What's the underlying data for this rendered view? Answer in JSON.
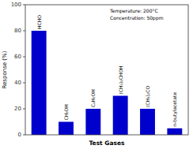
{
  "chart_data": {
    "type": "bar",
    "categories": [
      "HCHO",
      "CH₃OH",
      "C₂H₅OH",
      "(CH₃)₂CHOH",
      "(CH₃)₂CO",
      "n-butylacetate"
    ],
    "values": [
      80,
      10,
      20,
      30,
      20,
      5
    ],
    "color": "#0000cc",
    "xlabel": "Test Gases",
    "ylabel": "Response (%)",
    "annotation": "Temperature: 200°C\nConcentration: 50ppm",
    "ylim": [
      0,
      100
    ],
    "yticks": [
      0,
      20,
      40,
      60,
      80,
      100
    ],
    "grid": false
  }
}
